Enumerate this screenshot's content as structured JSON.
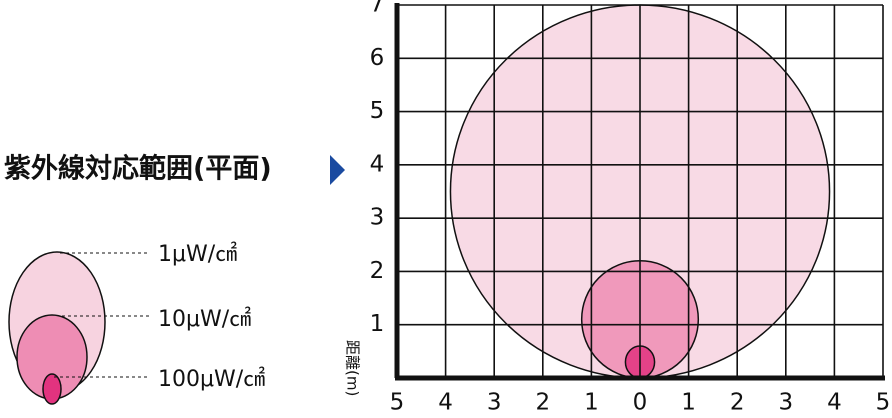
{
  "chart_data": {
    "type": "coverage",
    "title": "紫外線対応範囲(平面)",
    "y_label": "距離(m)",
    "series": [
      {
        "name": "1μW/㎠",
        "color": "#f7d3e0",
        "reach": 7,
        "width": 3.9
      },
      {
        "name": "10μW/㎠",
        "color": "#ee8db4",
        "reach": 2.2,
        "width": 1.2
      },
      {
        "name": "100μW/㎠",
        "color": "#e2337f",
        "reach": 0.6,
        "width": 0.3
      }
    ],
    "xlim": [
      -5,
      5
    ],
    "xticks": [
      {
        "value": -5,
        "label": "5"
      },
      {
        "value": -4,
        "label": "4"
      },
      {
        "value": -3,
        "label": "3"
      },
      {
        "value": -2,
        "label": "2"
      },
      {
        "value": -1,
        "label": "1"
      },
      0,
      1,
      2,
      3,
      4,
      5
    ],
    "ylim": [
      0,
      7
    ],
    "yticks": [
      1,
      2,
      3,
      4,
      5,
      6,
      7
    ],
    "grid": true
  }
}
